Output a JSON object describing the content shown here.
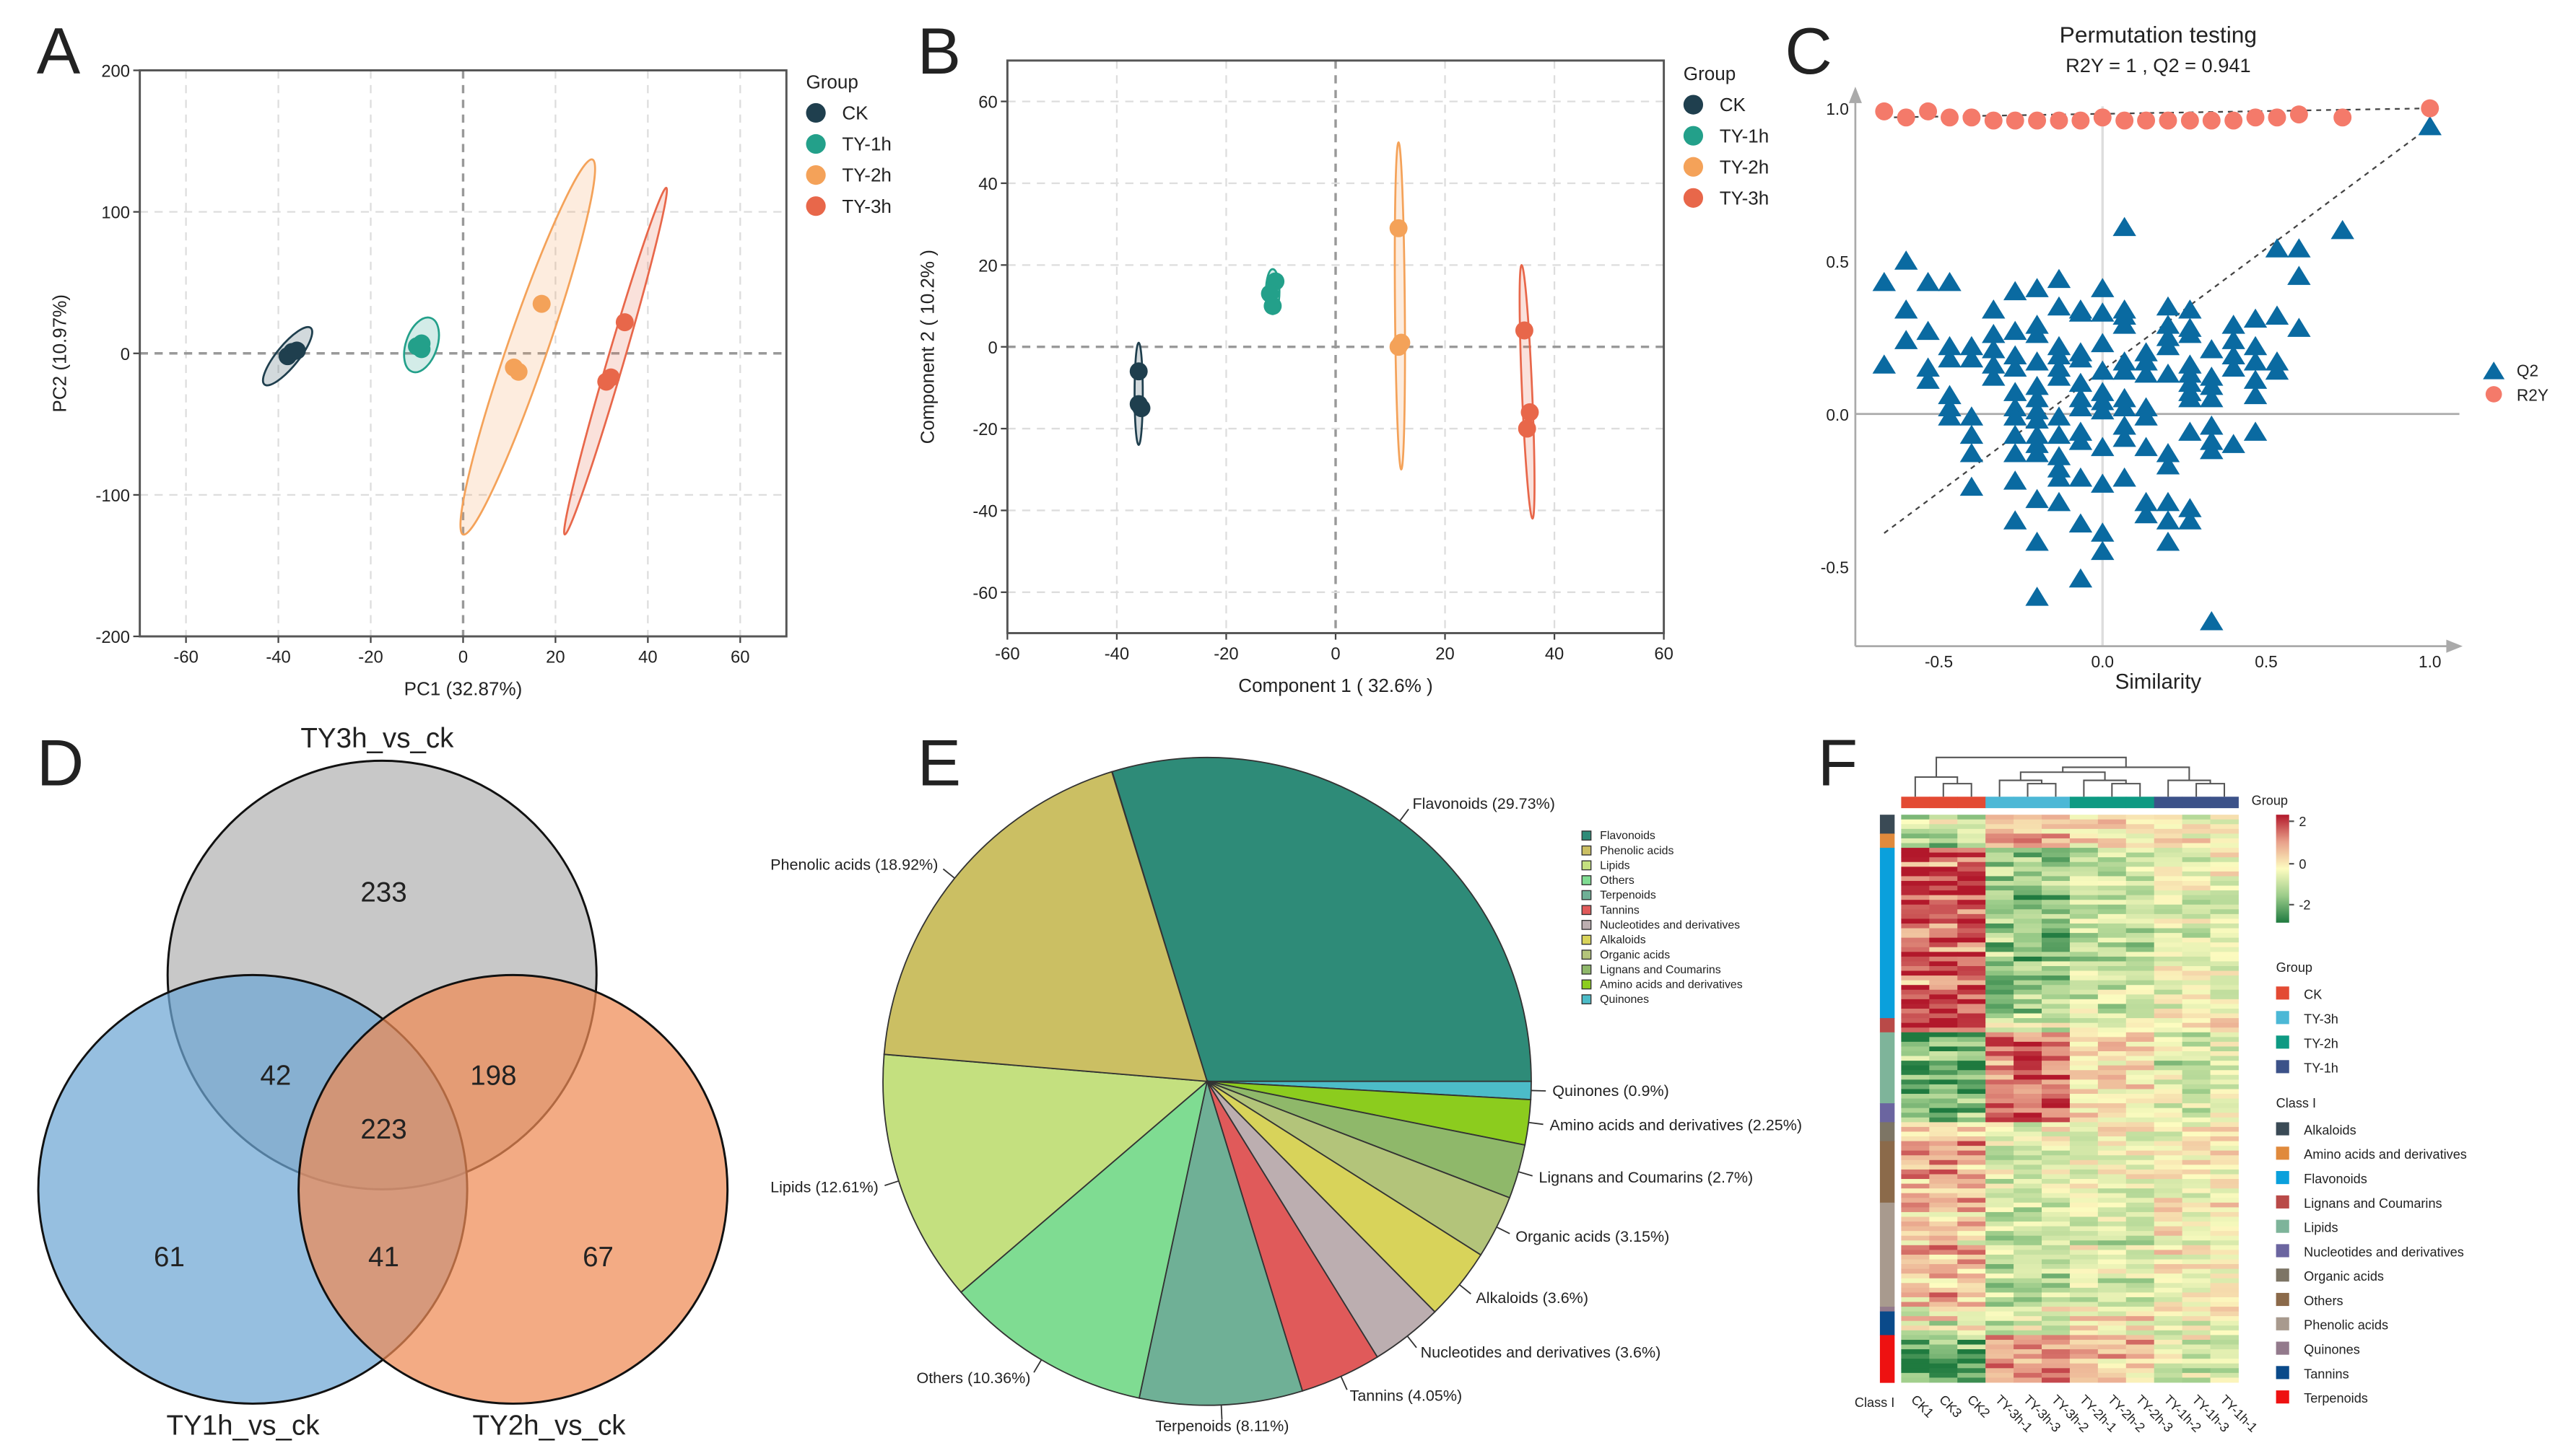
{
  "panel_labels": [
    "A",
    "B",
    "C",
    "D",
    "E",
    "F"
  ],
  "chart_data": [
    {
      "panel": "A",
      "type": "scatter",
      "xlabel": "PC1 (32.87%)",
      "ylabel": "PC2 (10.97%)",
      "xlim": [
        -70,
        70
      ],
      "ylim": [
        -200,
        200
      ],
      "xticks": [
        -60,
        -40,
        -20,
        0,
        20,
        40,
        60
      ],
      "yticks": [
        -200,
        -100,
        0,
        100,
        200
      ],
      "grid": true,
      "legend": {
        "title": "Group",
        "placement": "right"
      },
      "series": [
        {
          "name": "CK",
          "color": "#1f3f4e",
          "points": [
            [
              -38,
              -2
            ],
            [
              -37,
              1
            ],
            [
              -36,
              2
            ]
          ],
          "ellipse": {
            "axis_end_1": [
              -43,
              -22
            ],
            "axis_end_2": [
              -33,
              18
            ],
            "width_ratio": 0.3
          }
        },
        {
          "name": "TY-1h",
          "color": "#23a08a",
          "points": [
            [
              -10,
              5
            ],
            [
              -9,
              3
            ],
            [
              -9,
              7
            ]
          ],
          "ellipse": {
            "axis_end_1": [
              -11,
              -13
            ],
            "axis_end_2": [
              -7,
              25
            ],
            "width_ratio": 0.55
          }
        },
        {
          "name": "TY-2h",
          "color": "#f4a259",
          "points": [
            [
              17,
              35
            ],
            [
              11,
              -10
            ],
            [
              12,
              -13
            ]
          ],
          "ellipse": {
            "axis_end_1": [
              0,
              -128
            ],
            "axis_end_2": [
              28,
              137
            ],
            "width_ratio": 0.1
          }
        },
        {
          "name": "TY-3h",
          "color": "#e8674a",
          "points": [
            [
              35,
              22
            ],
            [
              31,
              -20
            ],
            [
              32,
              -17
            ]
          ],
          "ellipse": {
            "axis_end_1": [
              22,
              -128
            ],
            "axis_end_2": [
              44,
              117
            ],
            "width_ratio": 0.045
          }
        }
      ]
    },
    {
      "panel": "B",
      "type": "scatter",
      "xlabel": "Component 1 ( 32.6% )",
      "ylabel": "Component 2 ( 10.2% )",
      "xlim": [
        -60,
        60
      ],
      "ylim": [
        -70,
        70
      ],
      "xticks": [
        -60,
        -40,
        -20,
        0,
        20,
        40,
        60
      ],
      "yticks": [
        -60,
        -40,
        -20,
        0,
        20,
        40,
        60
      ],
      "grid": true,
      "legend": {
        "title": "Group",
        "placement": "right"
      },
      "series": [
        {
          "name": "CK",
          "color": "#1f3f4e",
          "points": [
            [
              -36,
              -6
            ],
            [
              -36,
              -14
            ],
            [
              -35.5,
              -15
            ]
          ],
          "ellipse": {
            "axis_end_1": [
              -36,
              1
            ],
            "axis_end_2": [
              -36,
              -24
            ],
            "width_ratio": 0.08
          }
        },
        {
          "name": "TY-1h",
          "color": "#23a08a",
          "points": [
            [
              -11,
              16
            ],
            [
              -12,
              13
            ],
            [
              -11.5,
              10
            ]
          ],
          "ellipse": {
            "axis_end_1": [
              -11.5,
              19
            ],
            "axis_end_2": [
              -11.5,
              8
            ],
            "width_ratio": 0.3
          }
        },
        {
          "name": "TY-2h",
          "color": "#f4a259",
          "points": [
            [
              11.5,
              29
            ],
            [
              12,
              1
            ],
            [
              11.5,
              0
            ]
          ],
          "ellipse": {
            "axis_end_1": [
              11.5,
              50
            ],
            "axis_end_2": [
              12,
              -30
            ],
            "width_ratio": 0.03
          }
        },
        {
          "name": "TY-3h",
          "color": "#e8674a",
          "points": [
            [
              34.5,
              4
            ],
            [
              35.5,
              -16
            ],
            [
              35,
              -20
            ]
          ],
          "ellipse": {
            "axis_end_1": [
              34,
              20
            ],
            "axis_end_2": [
              36,
              -42
            ],
            "width_ratio": 0.04
          }
        }
      ]
    },
    {
      "panel": "C",
      "type": "scatter",
      "title": "Permutation testing",
      "subtitle": "R2Y = 1 ,  Q2 = 0.941",
      "xlabel": "Similarity",
      "xlim": [
        -0.755,
        1.09
      ],
      "ylim": [
        -0.76,
        1.06
      ],
      "xticks": [
        -0.5,
        0,
        0.5,
        1.0
      ],
      "xtick_labels": [
        "-0.5",
        "0.0",
        "0.5",
        "1.0"
      ],
      "yticks": [
        -0.5,
        0,
        0.5,
        1.0
      ],
      "ytick_labels": [
        "-0.5",
        "0.0",
        "0.5",
        "1.0"
      ],
      "grid": false,
      "legend": {
        "placement": "right",
        "items": [
          {
            "name": "Q2",
            "shape": "triangle"
          },
          {
            "name": "R2Y",
            "shape": "circle"
          }
        ]
      },
      "colors": {
        "Q2": "#0a6aa1",
        "R2Y": "#f47a6a"
      },
      "R2Y": [
        {
          "x": -0.667,
          "y": 0.99
        },
        {
          "x": -0.6,
          "y": 0.97
        },
        {
          "x": -0.533,
          "y": 0.99
        },
        {
          "x": -0.467,
          "y": 0.97
        },
        {
          "x": -0.4,
          "y": 0.97
        },
        {
          "x": -0.333,
          "y": 0.96
        },
        {
          "x": -0.267,
          "y": 0.96
        },
        {
          "x": -0.2,
          "y": 0.96
        },
        {
          "x": -0.133,
          "y": 0.96
        },
        {
          "x": -0.067,
          "y": 0.96
        },
        {
          "x": 0,
          "y": 0.97
        },
        {
          "x": 0.067,
          "y": 0.96
        },
        {
          "x": 0.133,
          "y": 0.96
        },
        {
          "x": 0.2,
          "y": 0.96
        },
        {
          "x": 0.267,
          "y": 0.96
        },
        {
          "x": 0.333,
          "y": 0.96
        },
        {
          "x": 0.4,
          "y": 0.96
        },
        {
          "x": 0.467,
          "y": 0.97
        },
        {
          "x": 0.533,
          "y": 0.97
        },
        {
          "x": 0.6,
          "y": 0.98
        },
        {
          "x": 0.733,
          "y": 0.97
        },
        {
          "x": 1.0,
          "y": 1.0
        }
      ],
      "Q2": [
        {
          "x": -0.667,
          "y": [
            0.43,
            0.16
          ]
        },
        {
          "x": -0.6,
          "y": [
            0.5,
            0.34,
            0.24
          ]
        },
        {
          "x": -0.533,
          "y": [
            0.43,
            0.27,
            0.15,
            0.11
          ]
        },
        {
          "x": -0.467,
          "y": [
            0.43,
            0.22,
            0.18,
            0.06,
            0.02,
            -0.01
          ]
        },
        {
          "x": -0.4,
          "y": [
            0.22,
            0.18,
            -0.01,
            -0.07,
            -0.13,
            -0.24
          ]
        },
        {
          "x": -0.333,
          "y": [
            0.34,
            0.26,
            0.21,
            0.16,
            0.12
          ]
        },
        {
          "x": -0.267,
          "y": [
            0.4,
            0.27,
            0.19,
            0.15,
            0.07,
            0.02,
            -0.01,
            -0.07,
            -0.13,
            -0.22,
            -0.35
          ]
        },
        {
          "x": -0.2,
          "y": [
            0.41,
            0.29,
            0.26,
            0.17,
            0.09,
            0.05,
            0.01,
            -0.02,
            -0.07,
            -0.1,
            -0.13,
            -0.28,
            -0.42,
            -0.6
          ]
        },
        {
          "x": -0.133,
          "y": [
            0.44,
            0.35,
            0.22,
            0.19,
            0.15,
            0.12,
            -0.01,
            -0.07,
            -0.14,
            -0.18,
            -0.21,
            -0.29
          ]
        },
        {
          "x": -0.067,
          "y": [
            0.34,
            0.33,
            0.2,
            0.18,
            0.1,
            0.05,
            0.02,
            -0.06,
            -0.09,
            -0.21,
            -0.36,
            -0.54
          ]
        },
        {
          "x": 0,
          "y": [
            0.41,
            0.33,
            0.23,
            0.14,
            0.07,
            0.04,
            0.01,
            -0.11,
            -0.23,
            -0.39,
            -0.45
          ]
        },
        {
          "x": 0.067,
          "y": [
            0.61,
            0.34,
            0.32,
            0.29,
            0.17,
            0.14,
            0.05,
            0.02,
            -0.04,
            -0.08,
            -0.21
          ]
        },
        {
          "x": 0.133,
          "y": [
            0.2,
            0.17,
            0.13,
            0.02,
            -0.01,
            -0.11,
            -0.29,
            -0.33
          ]
        },
        {
          "x": 0.2,
          "y": [
            0.35,
            0.29,
            0.25,
            0.22,
            0.13,
            -0.13,
            -0.17,
            -0.29,
            -0.35,
            -0.42
          ]
        },
        {
          "x": 0.267,
          "y": [
            0.34,
            0.28,
            0.26,
            0.16,
            0.13,
            0.1,
            0.07,
            0.05,
            -0.06,
            -0.31,
            -0.35
          ]
        },
        {
          "x": 0.333,
          "y": [
            0.21,
            0.12,
            0.09,
            0.05,
            -0.04,
            -0.09,
            -0.12,
            -0.68
          ]
        },
        {
          "x": 0.4,
          "y": [
            0.29,
            0.24,
            0.19,
            0.15,
            -0.1
          ]
        },
        {
          "x": 0.467,
          "y": [
            0.31,
            0.22,
            0.17,
            0.11,
            0.06,
            -0.06
          ]
        },
        {
          "x": 0.533,
          "y": [
            0.54,
            0.32,
            0.17,
            0.14
          ]
        },
        {
          "x": 0.6,
          "y": [
            0.54,
            0.45,
            0.28
          ]
        },
        {
          "x": 0.733,
          "y": [
            0.6
          ]
        },
        {
          "x": 1.0,
          "y": [
            0.94
          ]
        }
      ],
      "regression_lines": {
        "R2Y": [
          [
            -0.667,
            0.97
          ],
          [
            1.0,
            1.0
          ]
        ],
        "Q2": [
          [
            -0.667,
            -0.39
          ],
          [
            1.0,
            0.94
          ]
        ]
      }
    },
    {
      "panel": "D",
      "type": "venn",
      "sets": [
        {
          "name": "TY3h_vs_ck",
          "color": "#b3b3b3"
        },
        {
          "name": "TY1h_vs_ck",
          "color": "#6ea6d4"
        },
        {
          "name": "TY2h_vs_ck",
          "color": "#ee8a55"
        }
      ],
      "regions": {
        "TY3h_only": "233",
        "TY1h_TY3h": "42",
        "TY3h_TY2h": "198",
        "all": "223",
        "TY1h_only": "61",
        "TY1h_TY2h": "41",
        "TY2h_only": "67"
      }
    },
    {
      "panel": "E",
      "type": "pie",
      "slices": [
        {
          "name": "Flavonoids",
          "value": 29.73,
          "label": "Flavonoids (29.73%)",
          "color": "#2e8b78"
        },
        {
          "name": "Phenolic acids",
          "value": 18.92,
          "label": "Phenolic acids (18.92%)",
          "color": "#cbbf63"
        },
        {
          "name": "Lipids",
          "value": 12.61,
          "label": "Lipids (12.61%)",
          "color": "#c4e07f"
        },
        {
          "name": "Others",
          "value": 10.36,
          "label": "Others (10.36%)",
          "color": "#7fdc92"
        },
        {
          "name": "Terpenoids",
          "value": 8.11,
          "label": "Terpenoids (8.11%)",
          "color": "#6fb096"
        },
        {
          "name": "Tannins",
          "value": 4.05,
          "label": "Tannins (4.05%)",
          "color": "#e05a5a"
        },
        {
          "name": "Nucleotides and derivatives",
          "value": 3.6,
          "label": "Nucleotides and derivatives (3.6%)",
          "color": "#bcaeb0"
        },
        {
          "name": "Alkaloids",
          "value": 3.6,
          "label": "Alkaloids (3.6%)",
          "color": "#d8d35a"
        },
        {
          "name": "Organic acids",
          "value": 3.15,
          "label": "Organic acids (3.15%)",
          "color": "#b3c47a"
        },
        {
          "name": "Lignans and Coumarins",
          "value": 2.7,
          "label": "Lignans and Coumarins (2.7%)",
          "color": "#8fb86a"
        },
        {
          "name": "Amino acids and derivatives",
          "value": 2.25,
          "label": "Amino acids and derivatives (2.25%)",
          "color": "#8ccc1e"
        },
        {
          "name": "Quinones",
          "value": 0.9,
          "label": "Quinones (0.9%)",
          "color": "#4cbcc8"
        }
      ],
      "clockwise_order": [
        "Flavonoids",
        "Quinones",
        "Amino acids and derivatives",
        "Lignans and Coumarins",
        "Organic acids",
        "Alkaloids",
        "Nucleotides and derivatives",
        "Tannins",
        "Terpenoids",
        "Others",
        "Lipids",
        "Phenolic acids"
      ],
      "legend": {
        "placement": "right"
      }
    },
    {
      "panel": "F",
      "type": "heatmap",
      "columns": [
        "CK1",
        "CK3",
        "CK2",
        "TY-3h-1",
        "TY-3h-3",
        "TY-3h-2",
        "TY-2h-1",
        "TY-2h-2",
        "TY-2h-3",
        "TY-1h-2",
        "TY-1h-3",
        "TY-1h-1"
      ],
      "column_groups": [
        "CK",
        "CK",
        "CK",
        "TY-3h",
        "TY-3h",
        "TY-3h",
        "TY-2h",
        "TY-2h",
        "TY-2h",
        "TY-1h",
        "TY-1h",
        "TY-1h"
      ],
      "group_legend": {
        "title": "Group",
        "items": [
          {
            "name": "CK",
            "color": "#e34a33"
          },
          {
            "name": "TY-3h",
            "color": "#4cb8d6"
          },
          {
            "name": "TY-2h",
            "color": "#0e9a83"
          },
          {
            "name": "TY-1h",
            "color": "#3c5289"
          }
        ]
      },
      "class_axis_label": "Class I",
      "class_legend": {
        "title": "Class I",
        "items": [
          {
            "name": "Alkaloids",
            "color": "#3a4a55",
            "rows": 4,
            "profile": [
              -0.3,
              0.6,
              0.3,
              0
            ]
          },
          {
            "name": "Amino acids and derivatives",
            "color": "#e08a3c",
            "rows": 3,
            "profile": [
              -1,
              0.8,
              0.2,
              0
            ]
          },
          {
            "name": "Flavonoids",
            "color": "#0aa0dc",
            "rows": 36,
            "profile": [
              1.5,
              -1,
              -0.5,
              -0.2
            ]
          },
          {
            "name": "Lignans and Coumarins",
            "color": "#b94a48",
            "rows": 3,
            "profile": [
              1.2,
              -0.5,
              -0.3,
              0
            ]
          },
          {
            "name": "Lipids",
            "color": "#7eb49a",
            "rows": 15,
            "profile": [
              -1.3,
              1.2,
              0.3,
              -0.4
            ]
          },
          {
            "name": "Nucleotides and derivatives",
            "color": "#6b65a0",
            "rows": 4,
            "profile": [
              -1,
              1.4,
              0.2,
              -0.3
            ]
          },
          {
            "name": "Organic acids",
            "color": "#7d7565",
            "rows": 4,
            "profile": [
              0,
              -0.2,
              0,
              0
            ]
          },
          {
            "name": "Others",
            "color": "#8b6a4a",
            "rows": 13,
            "profile": [
              0.7,
              -0.3,
              -0.2,
              0
            ]
          },
          {
            "name": "Phenolic acids",
            "color": "#a89a8e",
            "rows": 22,
            "profile": [
              0.6,
              -0.6,
              -0.3,
              0.1
            ]
          },
          {
            "name": "Quinones",
            "color": "#937a8c",
            "rows": 1,
            "profile": [
              0,
              0,
              0,
              0
            ]
          },
          {
            "name": "Tannins",
            "color": "#0a4a8a",
            "rows": 5,
            "profile": [
              0,
              -0.3,
              0.3,
              0
            ]
          },
          {
            "name": "Terpenoids",
            "color": "#ee1111",
            "rows": 10,
            "profile": [
              -1.2,
              1,
              0.6,
              -0.3
            ]
          }
        ]
      },
      "colorbar": {
        "title": "Group",
        "ticks": [
          "2",
          "0",
          "-2"
        ],
        "range": [
          -2,
          2
        ],
        "colors": [
          "#1f7a3f",
          "#9ccc8a",
          "#fdfcc0",
          "#e8a08a",
          "#b2182b"
        ]
      },
      "dendrogram": true
    }
  ]
}
